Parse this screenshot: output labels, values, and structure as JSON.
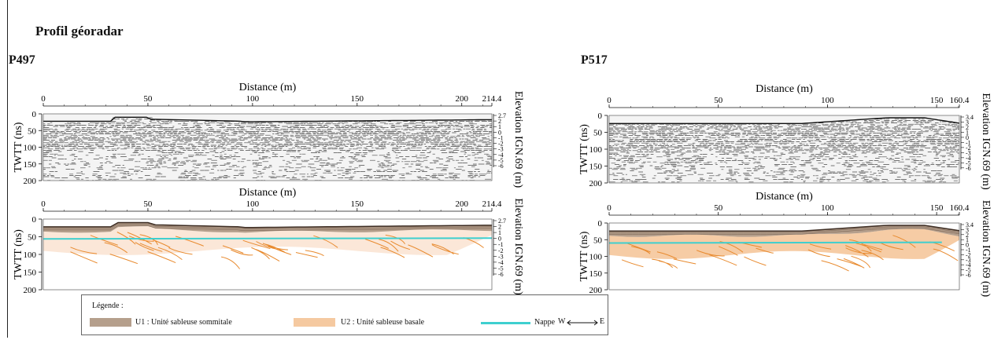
{
  "page": {
    "title": "Profil géoradar"
  },
  "colors": {
    "u1": "#b59f8c",
    "u2": "#f5c9a0",
    "u2_light": "#fbe6d6",
    "reflector": "#e88a2e",
    "nappe": "#3ecfcf",
    "radar_dark": "#2a2a2a",
    "radar_light": "#9a9a9a"
  },
  "legend": {
    "title": "Légende :",
    "items": [
      {
        "label": "U1 : Unité sableuse sommitale",
        "color": "#b59f8c"
      },
      {
        "label": "U2 : Unité sableuse basale",
        "color": "#f5c9a0"
      },
      {
        "label": "Nappe",
        "color": "#3ecfcf"
      }
    ],
    "direction_w": "W",
    "direction_e": "E"
  },
  "profiles": [
    {
      "name": "P497",
      "panels": [
        {
          "kind": "radargram",
          "x_label": "Distance (m)",
          "y_label": "TWTT (ns)",
          "y2_label": "Elevation IGN.69 (m)",
          "x_ticks": [
            "0",
            "50",
            "100",
            "150",
            "200",
            "214.4"
          ],
          "x_tick_values": [
            0,
            50,
            100,
            150,
            200,
            214.4
          ],
          "x_max": 214.4,
          "y_ticks": [
            "0",
            "50",
            "100",
            "150",
            "200"
          ],
          "y_tick_values": [
            0,
            50,
            100,
            150,
            200
          ],
          "y_max": 200,
          "y2_ticks": [
            "2.7",
            "2",
            "1",
            "0",
            "-1",
            "-2",
            "-3",
            "-4",
            "-5",
            "-6"
          ]
        },
        {
          "kind": "interpretation",
          "x_label": "Distance (m)",
          "y_label": "TWTT (ns)",
          "y2_label": "Elevation IGN.69 (m)",
          "x_ticks": [
            "0",
            "50",
            "100",
            "150",
            "200",
            "214.4"
          ],
          "x_tick_values": [
            0,
            50,
            100,
            150,
            200,
            214.4
          ],
          "x_max": 214.4,
          "y_ticks": [
            "0",
            "50",
            "100",
            "150",
            "200"
          ],
          "y_tick_values": [
            0,
            50,
            100,
            150,
            200
          ],
          "y_max": 200,
          "y2_ticks": [
            "2.7",
            "2",
            "1",
            "0",
            "-1",
            "-2",
            "-3",
            "-4",
            "-5",
            "-6"
          ]
        }
      ]
    },
    {
      "name": "P517",
      "panels": [
        {
          "kind": "radargram",
          "x_label": "Distance (m)",
          "y_label": "TWTT (ns)",
          "y2_label": "Elevation IGN.69 (m)",
          "x_ticks": [
            "0",
            "50",
            "100",
            "150",
            "160.4"
          ],
          "x_tick_values": [
            0,
            50,
            100,
            150,
            160.4
          ],
          "x_max": 160.4,
          "y_ticks": [
            "0",
            "50",
            "100",
            "150",
            "200"
          ],
          "y_tick_values": [
            0,
            50,
            100,
            150,
            200
          ],
          "y_max": 200,
          "y2_ticks": [
            "3.4",
            "3",
            "2",
            "1",
            "0",
            "-1",
            "-2",
            "-3",
            "-4",
            "-5",
            "-6"
          ]
        },
        {
          "kind": "interpretation",
          "x_label": "Distance (m)",
          "y_label": "TWTT (ns)",
          "y2_label": "Elevation IGN.69 (m)",
          "x_ticks": [
            "0",
            "50",
            "100",
            "150",
            "160.4"
          ],
          "x_tick_values": [
            0,
            50,
            100,
            150,
            160.4
          ],
          "x_max": 160.4,
          "y_ticks": [
            "0",
            "50",
            "100",
            "150",
            "200"
          ],
          "y_tick_values": [
            0,
            50,
            100,
            150,
            200
          ],
          "y_max": 200,
          "y2_ticks": [
            "3.4",
            "3",
            "2",
            "1",
            "0",
            "-1",
            "-2",
            "-3",
            "-4",
            "-5",
            "-6"
          ]
        }
      ]
    }
  ]
}
